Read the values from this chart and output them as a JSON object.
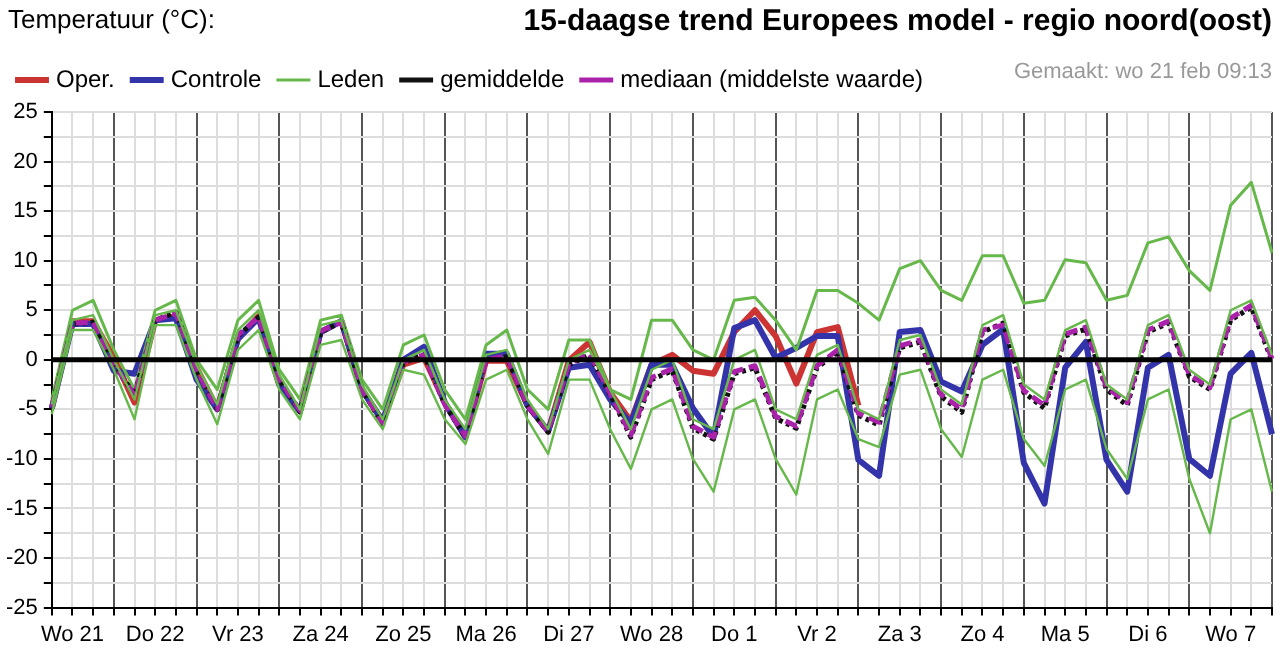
{
  "chart_data": {
    "type": "line",
    "title": "15-daagse trend Europees model - regio noord(oost)",
    "ylabel": "Temperatuur (°C):",
    "annotations": [
      "Gemaakt: wo 21 feb 09:13"
    ],
    "categories": [
      null,
      "Wo 21",
      null,
      null,
      null,
      "Do 22",
      null,
      null,
      null,
      "Vr 23",
      null,
      null,
      null,
      "Za 24",
      null,
      null,
      null,
      "Zo 25",
      null,
      null,
      null,
      "Ma 26",
      null,
      null,
      null,
      "Di 27",
      null,
      null,
      null,
      "Wo 28",
      null,
      null,
      null,
      "Do 1",
      null,
      null,
      null,
      "Vr 2",
      null,
      null,
      null,
      "Za 3",
      null,
      null,
      null,
      "Zo 4",
      null,
      null,
      null,
      "Ma 5",
      null,
      null,
      null,
      "Di 6",
      null,
      null,
      null,
      "Wo 7",
      null,
      null
    ],
    "series": [
      {
        "name": "Oper.",
        "color": "#cc3333",
        "values": [
          -4.9,
          3.9,
          3.9,
          0.2,
          -4.3,
          4,
          4.4,
          -0.8,
          -4.9,
          2.1,
          4.4,
          -2.5,
          -5.2,
          2.8,
          3.9,
          -3,
          -6.2,
          -0.5,
          0.2,
          -4.3,
          -7.8,
          -0.1,
          -0.1,
          -4.6,
          -7.2,
          -0.1,
          1.8,
          -3.3,
          -6.2,
          -0.5,
          0.5,
          -1.1,
          -1.4,
          2.8,
          5,
          2.4,
          -2.4,
          2.8,
          3.3,
          -4.6,
          null,
          null,
          null,
          null,
          null,
          null,
          null,
          null,
          null,
          null,
          null,
          null,
          null,
          null,
          null,
          null,
          null,
          null,
          null,
          null
        ]
      },
      {
        "name": "Controle",
        "color": "#3333aa",
        "values": [
          -4.9,
          3.6,
          3.6,
          -1.1,
          -1.4,
          4,
          4.2,
          -2,
          -5,
          2.1,
          4.2,
          -2.5,
          -5.2,
          2.8,
          3.9,
          -3,
          -6.2,
          0,
          1.3,
          -4.3,
          -7.8,
          0.6,
          0.6,
          -4.6,
          -7.2,
          -0.8,
          -0.5,
          -4,
          -6.4,
          -0.5,
          -0.5,
          -4.9,
          -7.8,
          3.2,
          4,
          0.2,
          1.2,
          2.4,
          2.4,
          -10.1,
          -11.7,
          2.8,
          3,
          -2.2,
          -3.2,
          1.5,
          3.1,
          -10.4,
          -14.5,
          -0.8,
          1.8,
          -10.1,
          -13.3,
          -0.8,
          0.5,
          -10,
          -11.7,
          -1.4,
          0.7,
          -7.5
        ]
      },
      {
        "name": "Leden",
        "color": "#66b84a",
        "values": [
          -4,
          5,
          6,
          1,
          -3,
          5,
          6,
          0,
          -3,
          4,
          6,
          -1,
          -4,
          4,
          4.5,
          -2,
          -5,
          1.5,
          2.5,
          -3,
          -6,
          1.5,
          3,
          -3,
          -5,
          2,
          2,
          -3,
          -4,
          4,
          4,
          1,
          0,
          6,
          6.3,
          4,
          1,
          7,
          7,
          5.7,
          4,
          9.2,
          10,
          7,
          6,
          10.5,
          10.5,
          5.7,
          6,
          10.1,
          9.8,
          6,
          6.5,
          11.8,
          12.4,
          9,
          7,
          15.6,
          17.9,
          10.8
        ]
      },
      {
        "name": "gemiddelde",
        "color": "#111111",
        "line_style": "dotted",
        "values": [
          -4.8,
          3.6,
          3.8,
          -0.5,
          -3.5,
          4,
          4.8,
          -1,
          -5,
          2.4,
          4.3,
          -2,
          -5.2,
          2.8,
          3.8,
          -3,
          -6.5,
          -0.3,
          0.5,
          -4.5,
          -7.8,
          0,
          0.3,
          -4.6,
          -7.3,
          -0.5,
          0.5,
          -3.5,
          -7.8,
          -2,
          -1.1,
          -6.9,
          -8,
          -1.4,
          -0.8,
          -5.9,
          -6.9,
          -0.8,
          0.8,
          -5.6,
          -6.6,
          1.2,
          1.8,
          -3.7,
          -5.3,
          2.8,
          3.7,
          -3.3,
          -4.9,
          2.4,
          3.1,
          -3,
          -4.6,
          2.8,
          3.7,
          -1.7,
          -3,
          4,
          5.3,
          -0.1
        ]
      },
      {
        "name": "mediaan (middelste waarde)",
        "color": "#aa22aa",
        "line_style": "dashed",
        "values": [
          -4.8,
          3.7,
          3.8,
          -0.4,
          -3.6,
          4,
          4.7,
          -1,
          -5,
          2.5,
          4.3,
          -2,
          -5.1,
          2.9,
          3.8,
          -3,
          -6.4,
          -0.2,
          0.5,
          -4.5,
          -7.7,
          0,
          0.4,
          -4.6,
          -7.2,
          -0.4,
          0.6,
          -3.4,
          -7.6,
          -1.8,
          -0.9,
          -6.7,
          -7.8,
          -1.2,
          -0.6,
          -5.7,
          -6.7,
          -0.6,
          1,
          -5.4,
          -6.3,
          1.4,
          2,
          -3.5,
          -5,
          3,
          3.5,
          -3.1,
          -4.6,
          2.6,
          3.3,
          -2.8,
          -4.3,
          3,
          3.9,
          -1.5,
          -2.8,
          4.2,
          5.5,
          0.1
        ]
      },
      {
        "color": "#66b84a",
        "values": [
          -5.5,
          3,
          3,
          -1,
          -6,
          3.5,
          3.5,
          -2,
          -6.5,
          1,
          3,
          -3,
          -6,
          1.5,
          2,
          -4,
          -7,
          -1,
          -1.5,
          -6,
          -8.5,
          -2,
          -1,
          -6,
          -9.5,
          -2,
          -2,
          -7,
          -11,
          -5,
          -4,
          -10,
          -13.3,
          -5,
          -4,
          -10,
          -13.6,
          -4,
          -3,
          -8,
          -8.8,
          -1.5,
          -1,
          -7,
          -9.8,
          -2,
          -1,
          -8,
          -10.7,
          -3,
          -2,
          -9,
          -12,
          -4,
          -3,
          -12,
          -17.5,
          -6,
          -5,
          -13.3
        ]
      },
      {
        "color": "#66b84a",
        "values": [
          -4.5,
          4,
          4.5,
          0,
          -4,
          4.5,
          5,
          -0.5,
          -4.5,
          3,
          5,
          -1.5,
          -5,
          3.5,
          4,
          -2.5,
          -6,
          0,
          1,
          -4,
          -7,
          0.5,
          1,
          -4,
          -7,
          0,
          1,
          -3,
          -7,
          -1,
          0,
          -6,
          -7,
          0,
          1,
          -5,
          -6,
          0.5,
          1.5,
          -5,
          -6,
          2,
          2.5,
          -3,
          -4.5,
          3.5,
          4.5,
          -2.5,
          -4,
          3,
          4,
          -2.5,
          -4,
          3.5,
          4.5,
          -1,
          -2.5,
          5,
          6,
          0.5
        ]
      }
    ],
    "ylim": [
      -25,
      25
    ],
    "yticks": [
      -25,
      {
        "value": -22.5,
        "label": null
      },
      -20,
      {
        "value": -17.5,
        "label": null
      },
      -15,
      {
        "value": -12.5,
        "label": null
      },
      -10,
      {
        "value": -7.5,
        "label": null
      },
      -5,
      {
        "value": -2.5,
        "label": null
      },
      0,
      {
        "value": 2.5,
        "label": null
      },
      5,
      {
        "value": 7.5,
        "label": null
      },
      10,
      {
        "value": 12.5,
        "label": null
      },
      15,
      {
        "value": 17.5,
        "label": null
      },
      20,
      {
        "value": 22.5,
        "label": null
      },
      25
    ],
    "grid": true,
    "legend": "top",
    "marker": "none",
    "ref_lines": [
      {
        "axis": "y",
        "value": 0,
        "color": "#000000"
      }
    ]
  }
}
